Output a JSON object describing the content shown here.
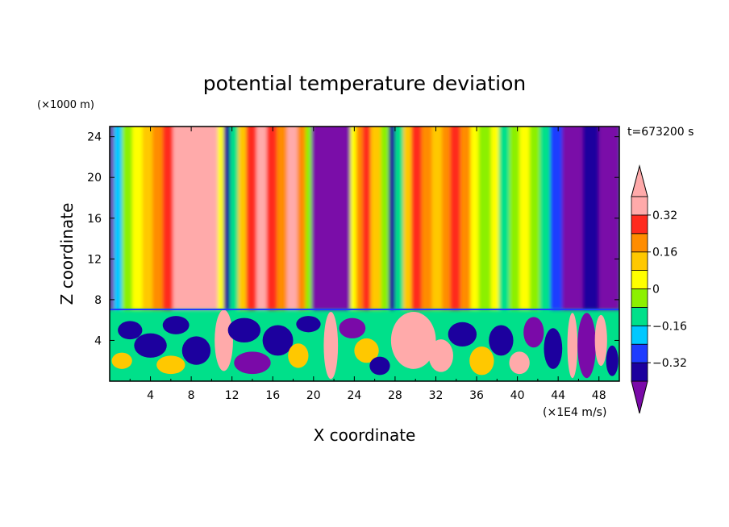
{
  "chart_data": {
    "type": "heatmap",
    "title": "potential temperature deviation",
    "xlabel": "X coordinate",
    "ylabel": "Z coordinate",
    "x_unit": "(×1E4 m/s)",
    "y_unit": "(×1000 m)",
    "time_label": "t=673200 s",
    "xlim": [
      0,
      50
    ],
    "ylim": [
      0,
      25
    ],
    "x_ticks": [
      "4",
      "8",
      "12",
      "16",
      "20",
      "24",
      "28",
      "32",
      "36",
      "40",
      "44",
      "48"
    ],
    "y_ticks": [
      "4",
      "8",
      "12",
      "16",
      "20",
      "24"
    ],
    "colorbar": {
      "levels": [
        -0.4,
        -0.32,
        -0.24,
        -0.16,
        -0.08,
        0,
        0.08,
        0.16,
        0.24,
        0.32,
        0.4
      ],
      "labels": [
        "0.32",
        "0.16",
        "0",
        "−0.16",
        "−0.32"
      ],
      "colors": [
        "#7a0aa8",
        "#1c009e",
        "#1e3cff",
        "#00c8ff",
        "#00e08a",
        "#8cf000",
        "#ffff00",
        "#ffc800",
        "#ff8c00",
        "#ff2a1e",
        "#ffaaaa"
      ]
    },
    "boundary_height": 7,
    "upper_columns": [
      {
        "x0": 0.0,
        "x1": 0.4,
        "value": -0.44
      },
      {
        "x0": 0.4,
        "x1": 1.2,
        "value": -0.2
      },
      {
        "x0": 1.2,
        "x1": 2.2,
        "value": -0.06
      },
      {
        "x0": 2.2,
        "x1": 3.2,
        "value": 0.04
      },
      {
        "x0": 3.2,
        "x1": 4.2,
        "value": 0.12
      },
      {
        "x0": 4.2,
        "x1": 5.2,
        "value": 0.2
      },
      {
        "x0": 5.2,
        "x1": 6.2,
        "value": 0.28
      },
      {
        "x0": 6.2,
        "x1": 7.0,
        "value": 0.36
      },
      {
        "x0": 7.0,
        "x1": 9.8,
        "value": 0.44
      },
      {
        "x0": 9.8,
        "x1": 10.6,
        "value": 0.36
      },
      {
        "x0": 10.6,
        "x1": 11.2,
        "value": 0.06
      },
      {
        "x0": 11.2,
        "x1": 11.8,
        "value": -0.36
      },
      {
        "x0": 11.8,
        "x1": 12.6,
        "value": -0.1
      },
      {
        "x0": 12.6,
        "x1": 13.4,
        "value": 0.12
      },
      {
        "x0": 13.4,
        "x1": 14.4,
        "value": 0.28
      },
      {
        "x0": 14.4,
        "x1": 15.4,
        "value": 0.36
      },
      {
        "x0": 15.4,
        "x1": 16.4,
        "value": 0.28
      },
      {
        "x0": 16.4,
        "x1": 17.4,
        "value": 0.2
      },
      {
        "x0": 17.4,
        "x1": 18.4,
        "value": 0.36
      },
      {
        "x0": 18.4,
        "x1": 19.2,
        "value": 0.2
      },
      {
        "x0": 19.2,
        "x1": 19.8,
        "value": -0.06
      },
      {
        "x0": 19.8,
        "x1": 23.6,
        "value": -0.44
      },
      {
        "x0": 23.6,
        "x1": 24.2,
        "value": 0.04
      },
      {
        "x0": 24.2,
        "x1": 24.8,
        "value": 0.2
      },
      {
        "x0": 24.8,
        "x1": 25.6,
        "value": 0.28
      },
      {
        "x0": 25.6,
        "x1": 26.6,
        "value": 0.12
      },
      {
        "x0": 26.6,
        "x1": 27.4,
        "value": -0.06
      },
      {
        "x0": 27.4,
        "x1": 28.0,
        "value": -0.36
      },
      {
        "x0": 28.0,
        "x1": 28.8,
        "value": -0.12
      },
      {
        "x0": 28.8,
        "x1": 29.6,
        "value": 0.12
      },
      {
        "x0": 29.6,
        "x1": 30.6,
        "value": 0.28
      },
      {
        "x0": 30.6,
        "x1": 31.6,
        "value": 0.2
      },
      {
        "x0": 31.6,
        "x1": 32.6,
        "value": 0.12
      },
      {
        "x0": 32.6,
        "x1": 33.4,
        "value": 0.2
      },
      {
        "x0": 33.4,
        "x1": 34.4,
        "value": 0.28
      },
      {
        "x0": 34.4,
        "x1": 35.4,
        "value": 0.2
      },
      {
        "x0": 35.4,
        "x1": 36.2,
        "value": 0.04
      },
      {
        "x0": 36.2,
        "x1": 37.4,
        "value": -0.06
      },
      {
        "x0": 37.4,
        "x1": 38.2,
        "value": 0.04
      },
      {
        "x0": 38.2,
        "x1": 39.2,
        "value": -0.12
      },
      {
        "x0": 39.2,
        "x1": 40.2,
        "value": -0.06
      },
      {
        "x0": 40.2,
        "x1": 41.2,
        "value": 0.04
      },
      {
        "x0": 41.2,
        "x1": 42.2,
        "value": -0.06
      },
      {
        "x0": 42.2,
        "x1": 43.2,
        "value": -0.16
      },
      {
        "x0": 43.2,
        "x1": 44.4,
        "value": -0.28
      },
      {
        "x0": 44.4,
        "x1": 46.4,
        "value": -0.44
      },
      {
        "x0": 46.4,
        "x1": 48.0,
        "value": -0.36
      },
      {
        "x0": 48.0,
        "x1": 50.0,
        "value": -0.44
      }
    ],
    "lower_blobs": [
      {
        "x": 2.0,
        "y": 5.0,
        "rx": 1.2,
        "ry": 0.9,
        "value": -0.4
      },
      {
        "x": 1.2,
        "y": 2.0,
        "rx": 1.0,
        "ry": 0.8,
        "value": 0.12
      },
      {
        "x": 4.0,
        "y": 3.5,
        "rx": 1.6,
        "ry": 1.2,
        "value": -0.4
      },
      {
        "x": 6.5,
        "y": 5.5,
        "rx": 1.3,
        "ry": 0.9,
        "value": -0.4
      },
      {
        "x": 6.0,
        "y": 1.6,
        "rx": 1.4,
        "ry": 0.9,
        "value": 0.12
      },
      {
        "x": 8.5,
        "y": 3.0,
        "rx": 1.4,
        "ry": 1.4,
        "value": -0.4
      },
      {
        "x": 11.2,
        "y": 4.0,
        "rx": 0.9,
        "ry": 3.0,
        "value": 0.44
      },
      {
        "x": 13.2,
        "y": 5.0,
        "rx": 1.6,
        "ry": 1.2,
        "value": -0.4
      },
      {
        "x": 14.0,
        "y": 1.8,
        "rx": 1.8,
        "ry": 1.1,
        "value": -0.44
      },
      {
        "x": 16.5,
        "y": 4.0,
        "rx": 1.5,
        "ry": 1.5,
        "value": -0.4
      },
      {
        "x": 18.5,
        "y": 2.5,
        "rx": 1.0,
        "ry": 1.2,
        "value": 0.12
      },
      {
        "x": 19.5,
        "y": 5.6,
        "rx": 1.2,
        "ry": 0.8,
        "value": -0.4
      },
      {
        "x": 21.7,
        "y": 3.5,
        "rx": 0.7,
        "ry": 3.3,
        "value": 0.44
      },
      {
        "x": 23.8,
        "y": 5.2,
        "rx": 1.3,
        "ry": 1.0,
        "value": -0.44
      },
      {
        "x": 25.2,
        "y": 3.0,
        "rx": 1.2,
        "ry": 1.2,
        "value": 0.12
      },
      {
        "x": 26.5,
        "y": 1.5,
        "rx": 1.0,
        "ry": 0.9,
        "value": -0.4
      },
      {
        "x": 29.8,
        "y": 4.0,
        "rx": 2.2,
        "ry": 2.8,
        "value": 0.44
      },
      {
        "x": 32.5,
        "y": 2.5,
        "rx": 1.2,
        "ry": 1.6,
        "value": 0.44
      },
      {
        "x": 34.6,
        "y": 4.6,
        "rx": 1.4,
        "ry": 1.2,
        "value": -0.4
      },
      {
        "x": 36.5,
        "y": 2.0,
        "rx": 1.2,
        "ry": 1.4,
        "value": 0.12
      },
      {
        "x": 38.4,
        "y": 4.0,
        "rx": 1.2,
        "ry": 1.5,
        "value": -0.4
      },
      {
        "x": 40.2,
        "y": 1.8,
        "rx": 1.0,
        "ry": 1.1,
        "value": 0.44
      },
      {
        "x": 41.6,
        "y": 4.8,
        "rx": 1.0,
        "ry": 1.5,
        "value": -0.44
      },
      {
        "x": 43.5,
        "y": 3.2,
        "rx": 0.9,
        "ry": 2.0,
        "value": -0.4
      },
      {
        "x": 45.4,
        "y": 3.5,
        "rx": 0.5,
        "ry": 3.2,
        "value": 0.44
      },
      {
        "x": 46.8,
        "y": 3.5,
        "rx": 0.9,
        "ry": 3.2,
        "value": -0.44
      },
      {
        "x": 48.2,
        "y": 4.0,
        "rx": 0.6,
        "ry": 2.5,
        "value": 0.44
      },
      {
        "x": 49.3,
        "y": 2.0,
        "rx": 0.6,
        "ry": 1.5,
        "value": -0.4
      }
    ]
  }
}
